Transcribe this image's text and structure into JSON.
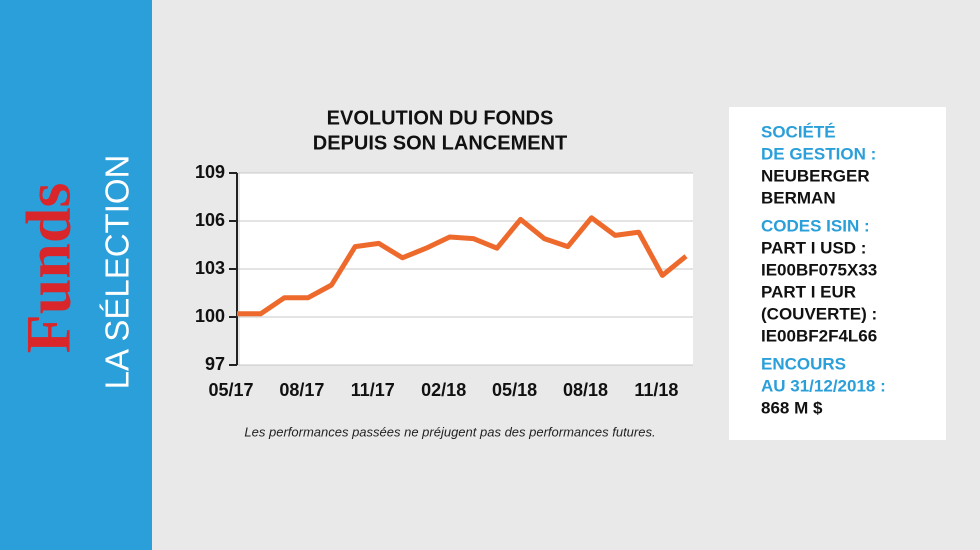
{
  "sidebar": {
    "brand": "Funds",
    "section": "LA SÉLECTION"
  },
  "chart_data": {
    "type": "line",
    "title": [
      "EVOLUTION DU FONDS",
      "DEPUIS SON LANCEMENT"
    ],
    "categories": [
      "05/17",
      null,
      null,
      "08/17",
      null,
      null,
      "11/17",
      null,
      null,
      "02/18",
      null,
      null,
      "05/18",
      null,
      null,
      "08/18",
      null,
      null,
      "11/18",
      null
    ],
    "series": [
      {
        "color": "#ee6a2c",
        "values": [
          100.2,
          100.2,
          101.2,
          101.2,
          102.0,
          104.4,
          104.6,
          103.7,
          104.3,
          105.0,
          104.9,
          104.3,
          106.1,
          104.9,
          104.4,
          106.2,
          105.1,
          105.3,
          102.6,
          103.8
        ]
      }
    ],
    "ylim": [
      97,
      109
    ],
    "yticks": [
      97,
      100,
      103,
      106,
      109
    ],
    "grid": true,
    "note": "Les performances passées ne préjugent pas des performances futures."
  },
  "info": [
    {
      "heading": [
        "SOCIÉTÉ",
        "DE GESTION :"
      ],
      "lines": [
        "NEUBERGER",
        "BERMAN"
      ]
    },
    {
      "heading": [
        "CODES ISIN :"
      ],
      "lines": [
        "PART I USD :",
        "IE00BF075X33",
        "PART I EUR",
        "(COUVERTE) :",
        "IE00BF2F4L66"
      ]
    },
    {
      "heading": [
        "ENCOURS",
        "AU 31/12/2018 :"
      ],
      "lines": [
        "868 M $"
      ]
    }
  ]
}
